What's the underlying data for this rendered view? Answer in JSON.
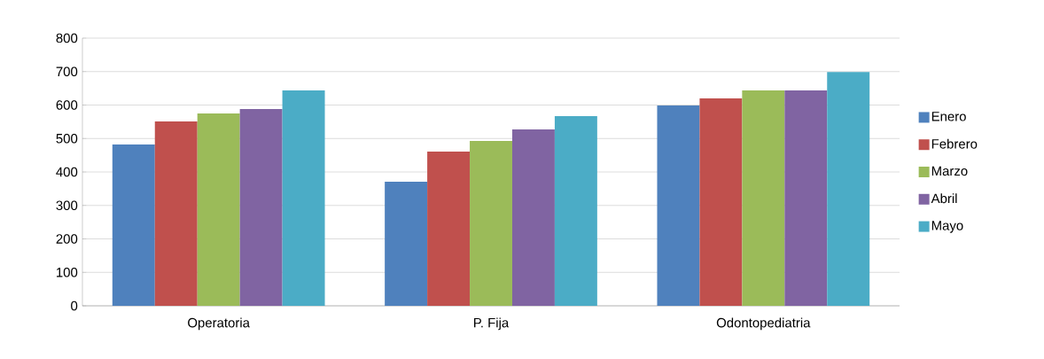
{
  "chart_data": {
    "type": "bar",
    "categories": [
      "Operatoria",
      "P. Fija",
      "Odontopediatria"
    ],
    "series": [
      {
        "name": "Enero",
        "color": "#4f81bd",
        "values": [
          482,
          371,
          599
        ]
      },
      {
        "name": "Febrero",
        "color": "#c0504d",
        "values": [
          551,
          461,
          620
        ]
      },
      {
        "name": "Marzo",
        "color": "#9bbb59",
        "values": [
          575,
          493,
          644
        ]
      },
      {
        "name": "Abril",
        "color": "#8064a2",
        "values": [
          588,
          527,
          644
        ]
      },
      {
        "name": "Mayo",
        "color": "#4bacc6",
        "values": [
          644,
          567,
          699
        ]
      }
    ],
    "ylim": [
      0,
      800
    ],
    "yticks": [
      0,
      100,
      200,
      300,
      400,
      500,
      600,
      700,
      800
    ],
    "grid": "y",
    "legend": "right"
  }
}
